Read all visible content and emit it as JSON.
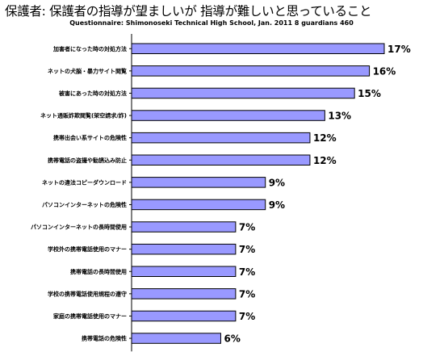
{
  "title": "保護者:  保護者の指導が望ましいが 指導が難しいと思っていること",
  "subtitle": "Questionnaire: Shimonoseki Technical High School, Jan. 2011  8 guardians 460",
  "colors": {
    "bar": "#9999ff",
    "bar_border": "#000000",
    "axis": "#000000"
  },
  "chart_data": {
    "type": "bar",
    "orientation": "horizontal",
    "title": "保護者:  保護者の指導が望ましいが 指導が難しいと思っていること",
    "subtitle": "Questionnaire: Shimonoseki Technical High School, Jan. 2011  8 guardians 460",
    "value_suffix": "%",
    "xlim": [
      0,
      18
    ],
    "grid": false,
    "legend": "none",
    "categories": [
      "加害者になった時の対処方法",
      "ネットの犬脳・暴力サイト閲覧",
      "被害にあった時の対処方法",
      "ネット通販詐欺閲覧(架空請求/詐)",
      "携帯出会い系サイトの危険性",
      "携帯電話の盗撮や勧誘込み防止",
      "ネットの違法コピーダウンロード",
      "パソコンインターネットの危険性",
      "パソコンインターネットの長時間使用",
      "学校外の携帯電話使用のマナー",
      "携帯電話の長時間使用",
      "学校の携帯電話使用規程の遵守",
      "家庭の携帯電話使用のマナー",
      "携帯電話の危険性"
    ],
    "values": [
      17,
      16,
      15,
      13,
      12,
      12,
      9,
      9,
      7,
      7,
      7,
      7,
      7,
      6
    ]
  }
}
